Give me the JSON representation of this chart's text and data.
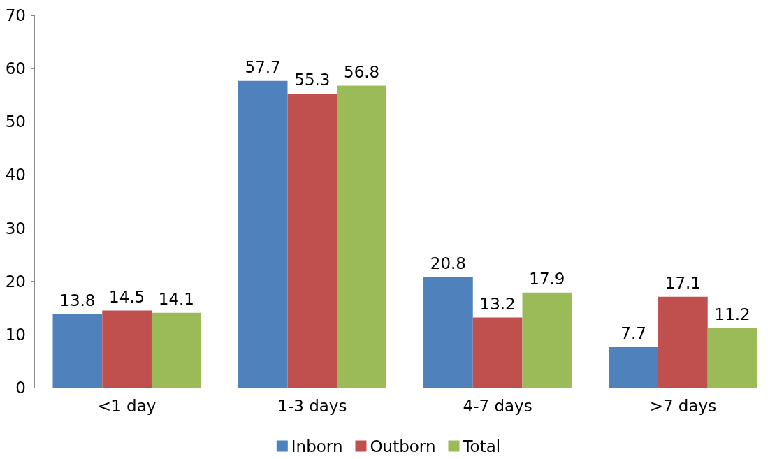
{
  "chart_data": {
    "type": "bar",
    "categories": [
      "<1 day",
      "1-3 days",
      "4-7 days",
      ">7 days"
    ],
    "series": [
      {
        "name": "Inborn",
        "color": "#4f81bd",
        "values": [
          13.8,
          57.7,
          20.8,
          7.7
        ]
      },
      {
        "name": "Outborn",
        "color": "#c0504d",
        "values": [
          14.5,
          55.3,
          13.2,
          17.1
        ]
      },
      {
        "name": "Total",
        "color": "#9bbb59",
        "values": [
          14.1,
          56.8,
          17.9,
          11.2
        ]
      }
    ],
    "ylim": [
      0,
      70
    ],
    "yticks": [
      0,
      10,
      20,
      30,
      40,
      50,
      60,
      70
    ],
    "grid": false,
    "legend": "bottom",
    "data_labels": true
  }
}
